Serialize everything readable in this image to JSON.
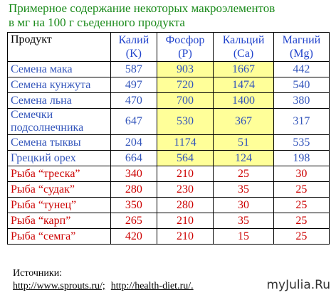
{
  "title": [
    "Примерное содержание некоторых макроэлементов",
    "в мг на 100 г съеденного продукта"
  ],
  "table": {
    "header": {
      "product": "Продукт",
      "columns": [
        {
          "name": "Калий",
          "symbol": "(K)"
        },
        {
          "name": "Фосфор",
          "symbol": "(P)"
        },
        {
          "name": "Кальций",
          "symbol": "(Ca)"
        },
        {
          "name": "Магний",
          "symbol": "(Mg)"
        }
      ]
    },
    "plant_rows": [
      [
        "Семена мака",
        587,
        903,
        1667,
        442
      ],
      [
        "Семена кунжута",
        497,
        720,
        1474,
        540
      ],
      [
        "Семена льна",
        470,
        700,
        1400,
        380
      ],
      [
        "Семечки подсолнечника",
        647,
        530,
        367,
        317
      ],
      [
        "Семена тыквы",
        204,
        1174,
        51,
        535
      ],
      [
        "Грецкий орех",
        664,
        564,
        124,
        198
      ]
    ],
    "fish_rows": [
      [
        "Рыба “треска”",
        340,
        210,
        25,
        30
      ],
      [
        "Рыба “судак”",
        280,
        230,
        35,
        25
      ],
      [
        "Рыба “тунец”",
        350,
        280,
        30,
        25
      ],
      [
        "Рыба “карп”",
        265,
        210,
        35,
        25
      ],
      [
        "Рыба “семга”",
        420,
        210,
        15,
        25
      ]
    ]
  },
  "footer": {
    "label": "Источники:",
    "sources": [
      "http://www.sprouts.ru/;",
      "http://health-diet.ru/."
    ]
  },
  "watermark": "myJulia.Ru"
}
